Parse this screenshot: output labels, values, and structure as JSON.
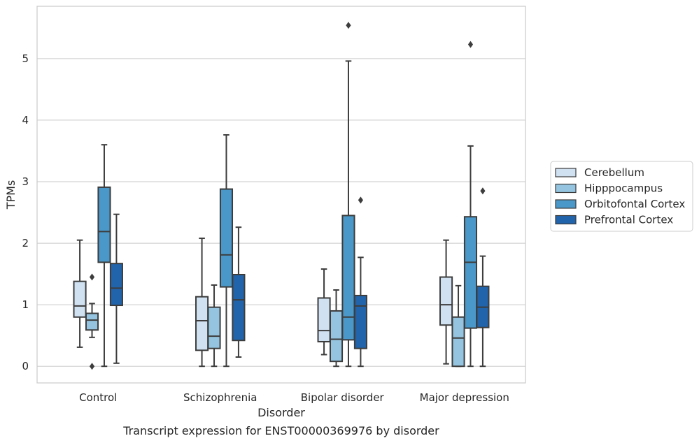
{
  "chart_data": {
    "type": "box",
    "caption": "Transcript expression for ENST00000369976 by disorder",
    "xlabel": "Disorder",
    "ylabel": "TPMs",
    "ylim": [
      -0.27,
      5.85
    ],
    "yticks": [
      0,
      1,
      2,
      3,
      4,
      5
    ],
    "grid": "horizontal",
    "legend_position": "right",
    "categories": [
      "Control",
      "Schizophrenia",
      "Bipolar disorder",
      "Major depression"
    ],
    "series": [
      {
        "name": "Cerebellum",
        "color": "#d0e1f2",
        "boxes": [
          {
            "whislo": 0.31,
            "q1": 0.8,
            "med": 0.98,
            "q3": 1.38,
            "whishi": 2.05,
            "fliers": []
          },
          {
            "whislo": 0.0,
            "q1": 0.26,
            "med": 0.74,
            "q3": 1.13,
            "whishi": 2.08,
            "fliers": []
          },
          {
            "whislo": 0.19,
            "q1": 0.4,
            "med": 0.58,
            "q3": 1.11,
            "whishi": 1.58,
            "fliers": []
          },
          {
            "whislo": 0.04,
            "q1": 0.67,
            "med": 1.0,
            "q3": 1.45,
            "whishi": 2.05,
            "fliers": []
          }
        ]
      },
      {
        "name": "Hipppocampus",
        "color": "#94c4df",
        "boxes": [
          {
            "whislo": 0.47,
            "q1": 0.59,
            "med": 0.75,
            "q3": 0.86,
            "whishi": 1.02,
            "fliers": [
              0.0,
              1.45
            ]
          },
          {
            "whislo": 0.0,
            "q1": 0.29,
            "med": 0.49,
            "q3": 0.96,
            "whishi": 1.32,
            "fliers": []
          },
          {
            "whislo": 0.0,
            "q1": 0.08,
            "med": 0.44,
            "q3": 0.9,
            "whishi": 1.24,
            "fliers": []
          },
          {
            "whislo": 0.0,
            "q1": 0.0,
            "med": 0.46,
            "q3": 0.8,
            "whishi": 1.31,
            "fliers": []
          }
        ]
      },
      {
        "name": "Orbitofontal Cortex",
        "color": "#4a98c9",
        "boxes": [
          {
            "whislo": 0.0,
            "q1": 1.69,
            "med": 2.19,
            "q3": 2.91,
            "whishi": 3.6,
            "fliers": []
          },
          {
            "whislo": 0.0,
            "q1": 1.29,
            "med": 1.81,
            "q3": 2.88,
            "whishi": 3.76,
            "fliers": []
          },
          {
            "whislo": 0.0,
            "q1": 0.43,
            "med": 0.8,
            "q3": 2.45,
            "whishi": 4.96,
            "fliers": [
              5.54
            ]
          },
          {
            "whislo": 0.0,
            "q1": 0.62,
            "med": 1.69,
            "q3": 2.43,
            "whishi": 3.58,
            "fliers": [
              5.23
            ]
          }
        ]
      },
      {
        "name": "Prefrontal Cortex",
        "color": "#2164ab",
        "boxes": [
          {
            "whislo": 0.05,
            "q1": 0.99,
            "med": 1.27,
            "q3": 1.67,
            "whishi": 2.47,
            "fliers": []
          },
          {
            "whislo": 0.15,
            "q1": 0.42,
            "med": 1.08,
            "q3": 1.49,
            "whishi": 2.26,
            "fliers": []
          },
          {
            "whislo": 0.0,
            "q1": 0.29,
            "med": 0.98,
            "q3": 1.15,
            "whishi": 1.77,
            "fliers": [
              2.7
            ]
          },
          {
            "whislo": 0.0,
            "q1": 0.63,
            "med": 0.96,
            "q3": 1.3,
            "whishi": 1.79,
            "fliers": [
              2.85
            ]
          }
        ]
      }
    ]
  }
}
